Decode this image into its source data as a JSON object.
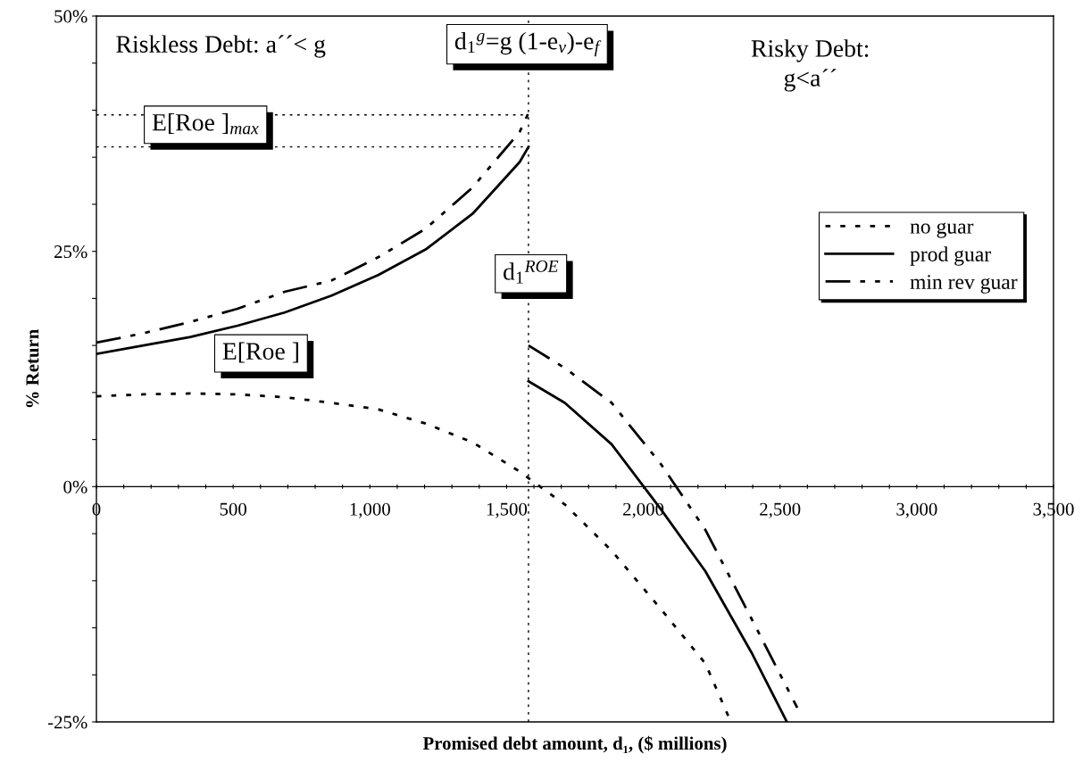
{
  "chart_data": {
    "type": "line",
    "xlabel": "Promised debt amount, d₁, ($ millions)",
    "ylabel": "% Return",
    "xlim": [
      0,
      3500
    ],
    "xticks": [
      0,
      {
        "value": 100,
        "label": null
      },
      {
        "value": 200,
        "label": null
      },
      {
        "value": 300,
        "label": null
      },
      {
        "value": 400,
        "label": null
      },
      500,
      {
        "value": 600,
        "label": null
      },
      {
        "value": 700,
        "label": null
      },
      {
        "value": 800,
        "label": null
      },
      {
        "value": 900,
        "label": null
      },
      {
        "value": 1000,
        "label": "1,000"
      },
      {
        "value": 1100,
        "label": null
      },
      {
        "value": 1200,
        "label": null
      },
      {
        "value": 1300,
        "label": null
      },
      {
        "value": 1400,
        "label": null
      },
      {
        "value": 1500,
        "label": "1,500"
      },
      {
        "value": 1600,
        "label": null
      },
      {
        "value": 1700,
        "label": null
      },
      {
        "value": 1800,
        "label": null
      },
      {
        "value": 1900,
        "label": null
      },
      {
        "value": 2000,
        "label": "2,000"
      },
      {
        "value": 2100,
        "label": null
      },
      {
        "value": 2200,
        "label": null
      },
      {
        "value": 2300,
        "label": null
      },
      {
        "value": 2400,
        "label": null
      },
      {
        "value": 2500,
        "label": "2,500"
      },
      {
        "value": 2600,
        "label": null
      },
      {
        "value": 2700,
        "label": null
      },
      {
        "value": 2800,
        "label": null
      },
      {
        "value": 2900,
        "label": null
      },
      {
        "value": 3000,
        "label": "3,000"
      },
      {
        "value": 3100,
        "label": null
      },
      {
        "value": 3200,
        "label": null
      },
      {
        "value": 3300,
        "label": null
      },
      {
        "value": 3400,
        "label": null
      },
      {
        "value": 3500,
        "label": "3,500"
      }
    ],
    "ylim": [
      -25,
      50
    ],
    "yticks": [
      {
        "value": -25,
        "label": "-25%"
      },
      {
        "value": -20,
        "label": null
      },
      {
        "value": -15,
        "label": null
      },
      {
        "value": -10,
        "label": null
      },
      {
        "value": -5,
        "label": null
      },
      {
        "value": 0,
        "label": "0%"
      },
      {
        "value": 5,
        "label": null
      },
      {
        "value": 10,
        "label": null
      },
      {
        "value": 15,
        "label": null
      },
      {
        "value": 20,
        "label": null
      },
      {
        "value": 25,
        "label": "25%"
      },
      {
        "value": 30,
        "label": null
      },
      {
        "value": 35,
        "label": null
      },
      {
        "value": 40,
        "label": null
      },
      {
        "value": 45,
        "label": null
      },
      {
        "value": 50,
        "label": "50%"
      }
    ],
    "grid": false,
    "legend": "right",
    "marker": "none",
    "series": [
      {
        "name": "no guar",
        "color": "#000000",
        "line_style": "dotted",
        "x": [
          0,
          172,
          344,
          516,
          688,
          860,
          1032,
          1204,
          1376,
          1548,
          1580,
          1713,
          1884,
          2064,
          2227,
          2320
        ],
        "values": [
          9.6,
          9.8,
          9.9,
          9.8,
          9.5,
          8.9,
          8.2,
          6.7,
          4.7,
          1.6,
          0.9,
          -1.9,
          -6.8,
          -13.0,
          -18.8,
          -25.0
        ]
      },
      {
        "name": "prod guar",
        "color": "#000000",
        "line_style": "solid",
        "x": [
          0,
          172,
          344,
          516,
          688,
          860,
          1032,
          1204,
          1376,
          1548,
          1580
        ],
        "values": [
          14.1,
          15.0,
          15.9,
          17.1,
          18.5,
          20.3,
          22.5,
          25.2,
          29.0,
          34.5,
          36.1
        ]
      },
      {
        "name": "min rev guar",
        "color": "#000000",
        "line_style": "dashdot",
        "x": [
          0,
          172,
          344,
          516,
          688,
          860,
          1032,
          1204,
          1376,
          1548,
          1580
        ],
        "values": [
          15.3,
          16.3,
          17.5,
          18.9,
          20.7,
          21.9,
          24.4,
          27.4,
          31.8,
          37.7,
          39.7
        ]
      },
      {
        "color": "#000000",
        "line_style": "solid",
        "x": [
          1580,
          1713,
          1884,
          2064,
          2227,
          2395,
          2525
        ],
        "values": [
          11.2,
          8.9,
          4.5,
          -2.4,
          -9.0,
          -17.6,
          -25.0
        ]
      },
      {
        "color": "#000000",
        "line_style": "dashdot",
        "x": [
          1580,
          1713,
          1884,
          2064,
          2227,
          2395,
          2563
        ],
        "values": [
          15.0,
          12.6,
          8.9,
          2.4,
          -4.6,
          -14.0,
          -23.5
        ]
      }
    ],
    "ref_lines": [
      {
        "axis": "x",
        "value": 1580,
        "label": null,
        "color": "#000000",
        "line_style": "dotted"
      },
      {
        "axis": "y",
        "value": 39.5,
        "label": null,
        "color": "#000000",
        "line_style": "dotted"
      },
      {
        "axis": "y",
        "value": 36.1,
        "label": null,
        "color": "#000000",
        "line_style": "dotted"
      }
    ],
    "annotations": [
      "Riskless Debt: a´´< g",
      "d$_{1}$$^{g}$=g (1-e$_{v}$)-e$_{f}$",
      "Risky Debt:\ng<a´´",
      "E[Roe ]$_{max}$",
      "d$_{1}$$^{ROE}$",
      "E[Roe ]"
    ]
  }
}
